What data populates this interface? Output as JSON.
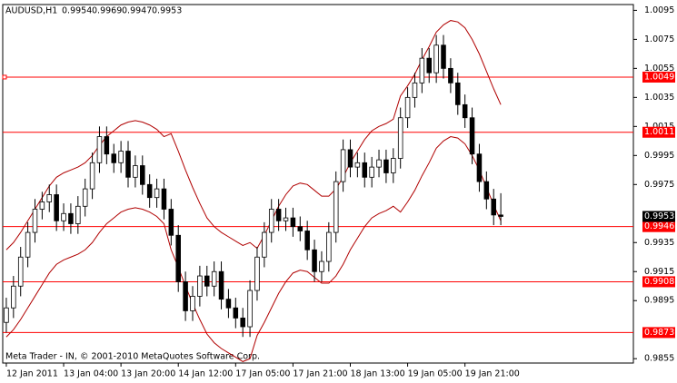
{
  "chart_data": {
    "type": "candlestick",
    "title": "AUDUSD,H1",
    "annotation": "Meta Trader - IN, © 2001-2010 MetaQuotes Software Corp.",
    "categories": [
      "12 Jan 2011",
      null,
      null,
      null,
      null,
      null,
      null,
      null,
      "13 Jan 04:00",
      null,
      null,
      null,
      null,
      null,
      null,
      null,
      "13 Jan 20:00",
      null,
      null,
      null,
      null,
      null,
      null,
      null,
      "14 Jan 12:00",
      null,
      null,
      null,
      null,
      null,
      null,
      null,
      "17 Jan 05:00",
      null,
      null,
      null,
      null,
      null,
      null,
      null,
      "17 Jan 21:00",
      null,
      null,
      null,
      null,
      null,
      null,
      null,
      "18 Jan 13:00",
      null,
      null,
      null,
      null,
      null,
      null,
      null,
      "19 Jan 05:00",
      null,
      null,
      null,
      null,
      null,
      null,
      null,
      "19 Jan 21:00",
      null,
      null,
      null,
      null,
      null
    ],
    "open": [
      0.988,
      0.989,
      0.9905,
      0.9925,
      0.9942,
      0.9958,
      0.9963,
      0.9968,
      0.995,
      0.9955,
      0.9948,
      0.996,
      0.9972,
      0.999,
      1.0008,
      0.9996,
      0.999,
      0.9998,
      0.998,
      0.9988,
      0.9975,
      0.9966,
      0.9972,
      0.9958,
      0.994,
      0.9908,
      0.9888,
      0.9898,
      0.9912,
      0.9905,
      0.9915,
      0.9896,
      0.989,
      0.9883,
      0.9877,
      0.9902,
      0.9925,
      0.9942,
      0.9958,
      0.995,
      0.9952,
      0.9946,
      0.9943,
      0.993,
      0.9915,
      0.9922,
      0.9942,
      0.9977,
      0.9999,
      0.9987,
      0.999,
      0.998,
      0.9987,
      0.9992,
      0.9983,
      0.9993,
      1.0021,
      1.0035,
      1.0045,
      1.0062,
      1.0052,
      1.0071,
      1.0055,
      1.0045,
      1.003,
      1.0021,
      0.9996,
      0.9977,
      0.9965,
      0.9954
    ],
    "high": [
      0.9897,
      0.9912,
      0.9932,
      0.9949,
      0.9965,
      0.997,
      0.9975,
      0.9975,
      0.9962,
      0.9962,
      0.9967,
      0.9979,
      0.9997,
      1.0015,
      1.0015,
      1.0003,
      1.0005,
      1.0005,
      0.9995,
      0.9995,
      0.9982,
      0.9979,
      0.9979,
      0.9965,
      0.9947,
      0.9915,
      0.9905,
      0.9919,
      0.9919,
      0.9922,
      0.9922,
      0.9903,
      0.9897,
      0.989,
      0.9909,
      0.9932,
      0.9949,
      0.9965,
      0.9965,
      0.9959,
      0.9959,
      0.9953,
      0.995,
      0.9937,
      0.9929,
      0.9949,
      0.9984,
      1.0006,
      1.0006,
      0.9997,
      0.9997,
      0.9994,
      0.9999,
      0.9999,
      1.0,
      1.0028,
      1.0042,
      1.0052,
      1.0069,
      1.0069,
      1.0078,
      1.0078,
      1.0062,
      1.0052,
      1.0037,
      1.0028,
      1.0003,
      0.9984,
      0.9972,
      0.9969
    ],
    "low": [
      0.9873,
      0.9883,
      0.9898,
      0.9918,
      0.9935,
      0.9951,
      0.9956,
      0.9943,
      0.9943,
      0.9941,
      0.9941,
      0.9953,
      0.9965,
      0.9983,
      0.9989,
      0.9983,
      0.9983,
      0.9973,
      0.9973,
      0.9968,
      0.9959,
      0.9959,
      0.9951,
      0.9933,
      0.9901,
      0.9881,
      0.9881,
      0.9891,
      0.9898,
      0.9898,
      0.9889,
      0.9883,
      0.9876,
      0.987,
      0.987,
      0.9895,
      0.9918,
      0.9935,
      0.9943,
      0.9943,
      0.9939,
      0.9936,
      0.9923,
      0.9908,
      0.9908,
      0.9915,
      0.9935,
      0.997,
      0.998,
      0.998,
      0.9973,
      0.9973,
      0.998,
      0.9976,
      0.9976,
      0.9986,
      1.0014,
      1.0028,
      1.0038,
      1.0045,
      1.0045,
      1.0048,
      1.0038,
      1.0023,
      1.0014,
      0.9989,
      0.997,
      0.9958,
      0.9947,
      0.9947
    ],
    "close": [
      0.989,
      0.9905,
      0.9925,
      0.9942,
      0.9958,
      0.9963,
      0.9968,
      0.995,
      0.9955,
      0.9948,
      0.996,
      0.9972,
      0.999,
      1.0008,
      0.9996,
      0.999,
      0.9998,
      0.998,
      0.9988,
      0.9975,
      0.9966,
      0.9972,
      0.9958,
      0.994,
      0.9908,
      0.9888,
      0.9898,
      0.9912,
      0.9905,
      0.9915,
      0.9896,
      0.989,
      0.9883,
      0.9877,
      0.9902,
      0.9925,
      0.9942,
      0.9958,
      0.995,
      0.9952,
      0.9946,
      0.9943,
      0.993,
      0.9915,
      0.9922,
      0.9942,
      0.9977,
      0.9999,
      0.9987,
      0.999,
      0.998,
      0.9987,
      0.9992,
      0.9983,
      0.9993,
      1.0021,
      1.0035,
      1.0045,
      1.0062,
      1.0052,
      1.0071,
      1.0055,
      1.0045,
      1.003,
      1.0021,
      0.9996,
      0.9977,
      0.9965,
      0.9954,
      0.9953
    ],
    "upper_band": [
      0.993,
      0.9935,
      0.9942,
      0.995,
      0.9958,
      0.9966,
      0.9974,
      0.998,
      0.9983,
      0.9985,
      0.9987,
      0.999,
      0.9995,
      1.0002,
      1.0008,
      1.0012,
      1.0016,
      1.0018,
      1.0019,
      1.0018,
      1.0016,
      1.0013,
      1.0008,
      1.001,
      0.9998,
      0.9985,
      0.9973,
      0.9962,
      0.9952,
      0.9946,
      0.9942,
      0.9939,
      0.9936,
      0.9933,
      0.9935,
      0.9931,
      0.994,
      0.995,
      0.996,
      0.9968,
      0.9974,
      0.9976,
      0.9975,
      0.9971,
      0.9967,
      0.9967,
      0.9972,
      0.998,
      0.999,
      0.9998,
      1.0006,
      1.0012,
      1.0015,
      1.0017,
      1.002,
      1.0036,
      1.0043,
      1.0051,
      1.0061,
      1.007,
      1.008,
      1.0085,
      1.0088,
      1.0087,
      1.0083,
      1.0075,
      1.0065,
      1.0053,
      1.0041,
      1.003
    ],
    "lower_band": [
      0.987,
      0.9875,
      0.9882,
      0.989,
      0.9898,
      0.9906,
      0.9914,
      0.992,
      0.9923,
      0.9925,
      0.9927,
      0.993,
      0.9935,
      0.9942,
      0.9948,
      0.9952,
      0.9956,
      0.9958,
      0.9959,
      0.9958,
      0.9956,
      0.9953,
      0.9948,
      0.993,
      0.9918,
      0.9905,
      0.9893,
      0.9882,
      0.9872,
      0.9866,
      0.9862,
      0.9859,
      0.9856,
      0.9853,
      0.9855,
      0.9871,
      0.988,
      0.989,
      0.99,
      0.9908,
      0.9914,
      0.9916,
      0.9915,
      0.9911,
      0.9907,
      0.9907,
      0.9912,
      0.992,
      0.993,
      0.9938,
      0.9946,
      0.9952,
      0.9955,
      0.9957,
      0.996,
      0.9956,
      0.9963,
      0.9971,
      0.9981,
      0.999,
      1.0,
      1.0005,
      1.0008,
      1.0007,
      1.0003,
      0.9995,
      0.9985,
      0.9973,
      0.9961,
      0.995
    ],
    "band_color": "#b00000",
    "levels": [
      1.0049,
      1.0011,
      0.9946,
      0.9908,
      0.9873
    ],
    "level_color": "#ff0000",
    "up_color": "#ffffff",
    "down_color": "#000000",
    "ylim": [
      0.9852,
      1.0099
    ],
    "yticks": [
      1.0095,
      1.0075,
      1.0055,
      1.0035,
      1.0015,
      0.9995,
      0.9975,
      0.9935,
      0.9915,
      0.9895,
      0.9855
    ]
  }
}
